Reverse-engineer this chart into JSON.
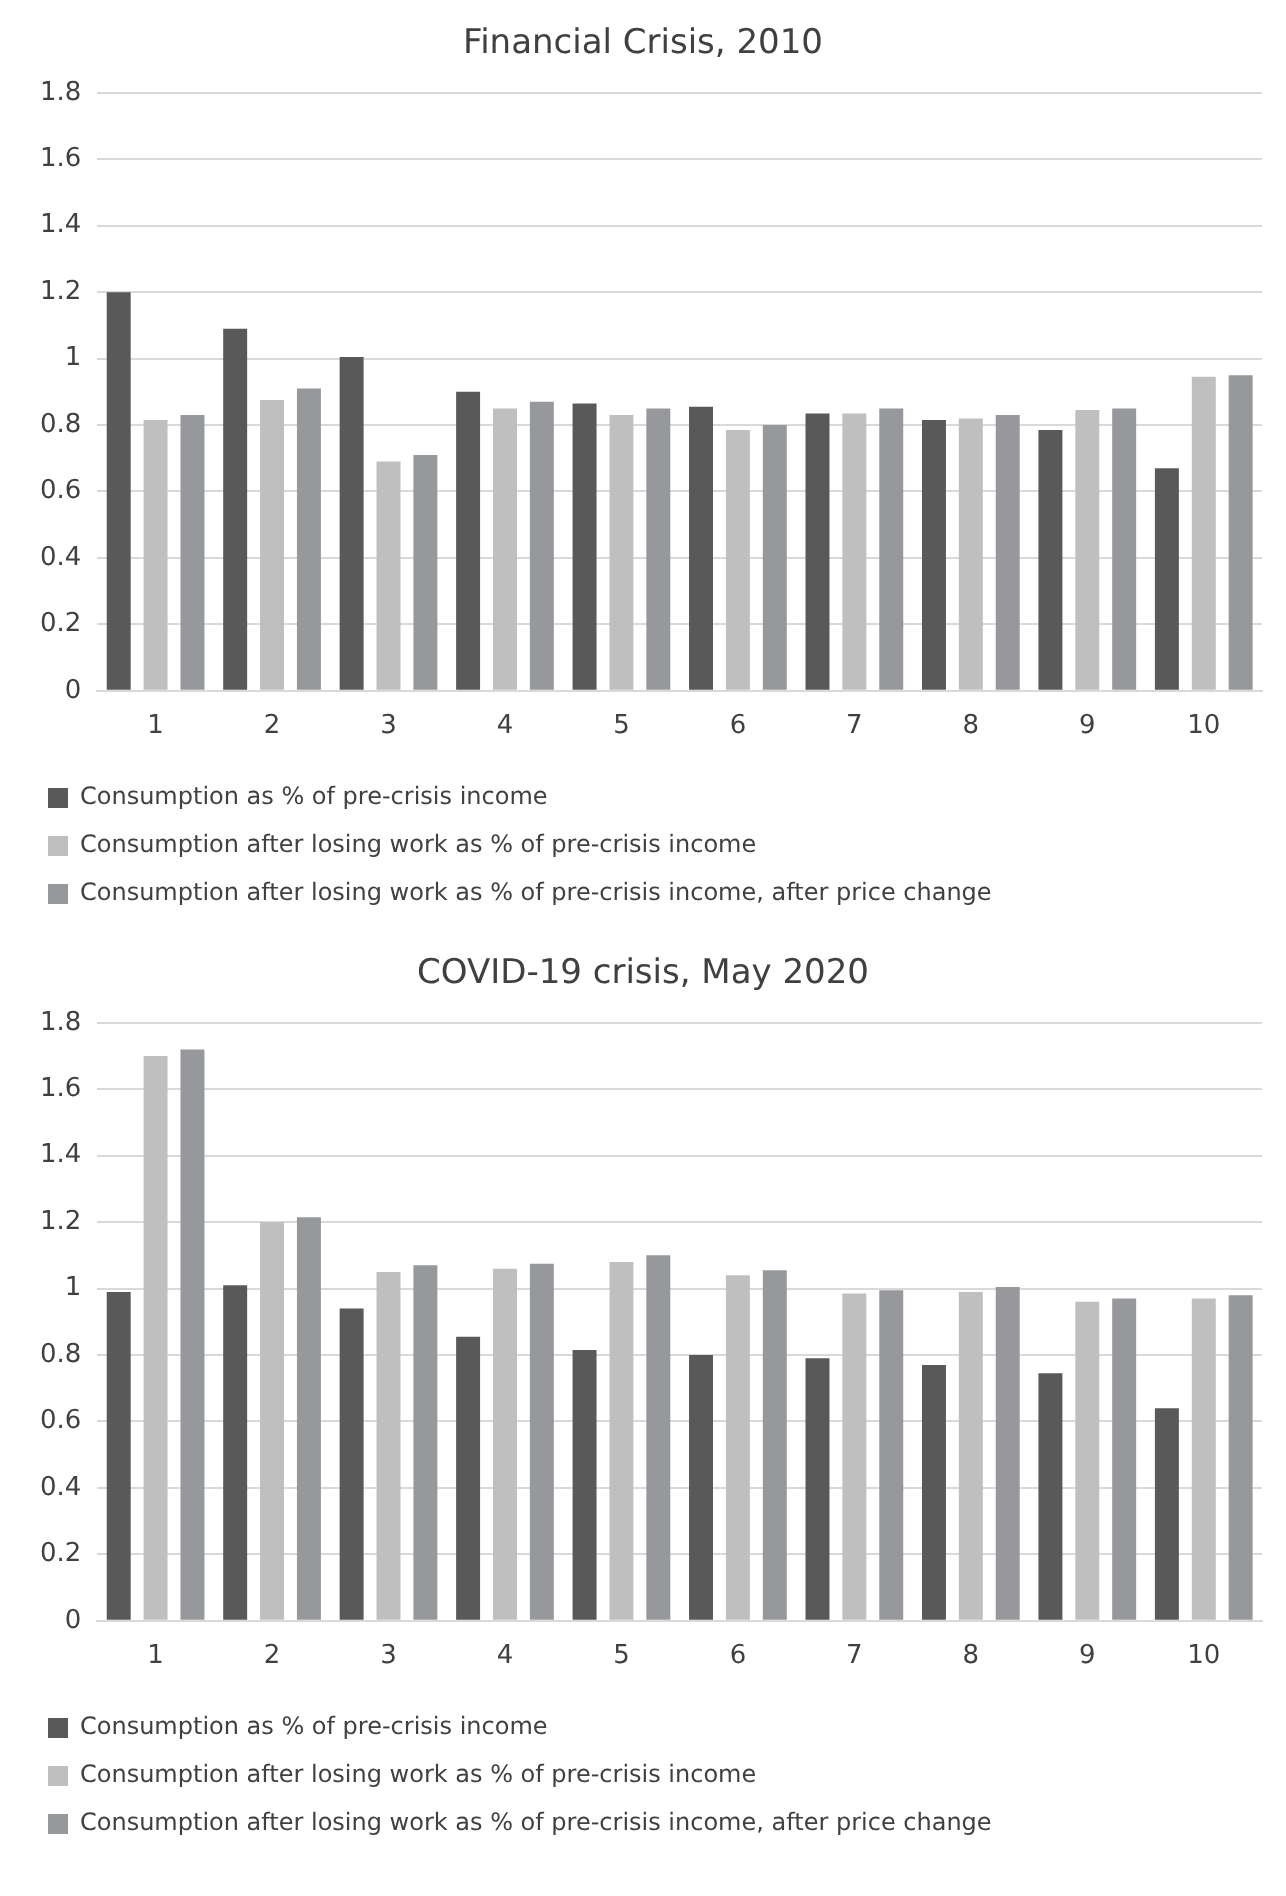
{
  "chart_data": [
    {
      "type": "bar",
      "title": "Financial Crisis, 2010",
      "categories": [
        "1",
        "2",
        "3",
        "4",
        "5",
        "6",
        "7",
        "8",
        "9",
        "10"
      ],
      "series": [
        {
          "name": "Consumption as % of pre-crisis income",
          "color": "#595959",
          "values": [
            1.2,
            1.09,
            1.005,
            0.9,
            0.865,
            0.855,
            0.835,
            0.815,
            0.785,
            0.67
          ]
        },
        {
          "name": "Consumption after losing work as % of pre-crisis income",
          "color": "#bfbfbf",
          "values": [
            0.815,
            0.875,
            0.69,
            0.85,
            0.83,
            0.785,
            0.835,
            0.82,
            0.845,
            0.945
          ]
        },
        {
          "name": "Consumption after losing work as % of pre-crisis income, after price change",
          "color": "#97989c",
          "values": [
            0.83,
            0.91,
            0.71,
            0.87,
            0.85,
            0.8,
            0.85,
            0.83,
            0.85,
            0.95
          ]
        }
      ],
      "ylim": [
        0,
        1.8
      ],
      "yticks": [
        0,
        0.2,
        0.4,
        0.6,
        0.8,
        1,
        1.2,
        1.4,
        1.6,
        1.8
      ],
      "grid": "y",
      "legend": "bottom"
    },
    {
      "type": "bar",
      "title": "COVID-19 crisis, May 2020",
      "categories": [
        "1",
        "2",
        "3",
        "4",
        "5",
        "6",
        "7",
        "8",
        "9",
        "10"
      ],
      "series": [
        {
          "name": "Consumption as % of pre-crisis income",
          "color": "#595959",
          "values": [
            0.99,
            1.01,
            0.94,
            0.855,
            0.815,
            0.8,
            0.79,
            0.77,
            0.745,
            0.64
          ]
        },
        {
          "name": "Consumption after losing work as % of pre-crisis income",
          "color": "#bfbfbf",
          "values": [
            1.7,
            1.2,
            1.05,
            1.06,
            1.08,
            1.04,
            0.985,
            0.99,
            0.96,
            0.97
          ]
        },
        {
          "name": "Consumption after losing work as % of pre-crisis income, after price change",
          "color": "#97989c",
          "values": [
            1.72,
            1.215,
            1.07,
            1.075,
            1.1,
            1.055,
            0.995,
            1.005,
            0.97,
            0.98
          ]
        }
      ],
      "ylim": [
        0,
        1.8
      ],
      "yticks": [
        0,
        0.2,
        0.4,
        0.6,
        0.8,
        1,
        1.2,
        1.4,
        1.6,
        1.8
      ],
      "grid": "y",
      "legend": "bottom"
    }
  ]
}
